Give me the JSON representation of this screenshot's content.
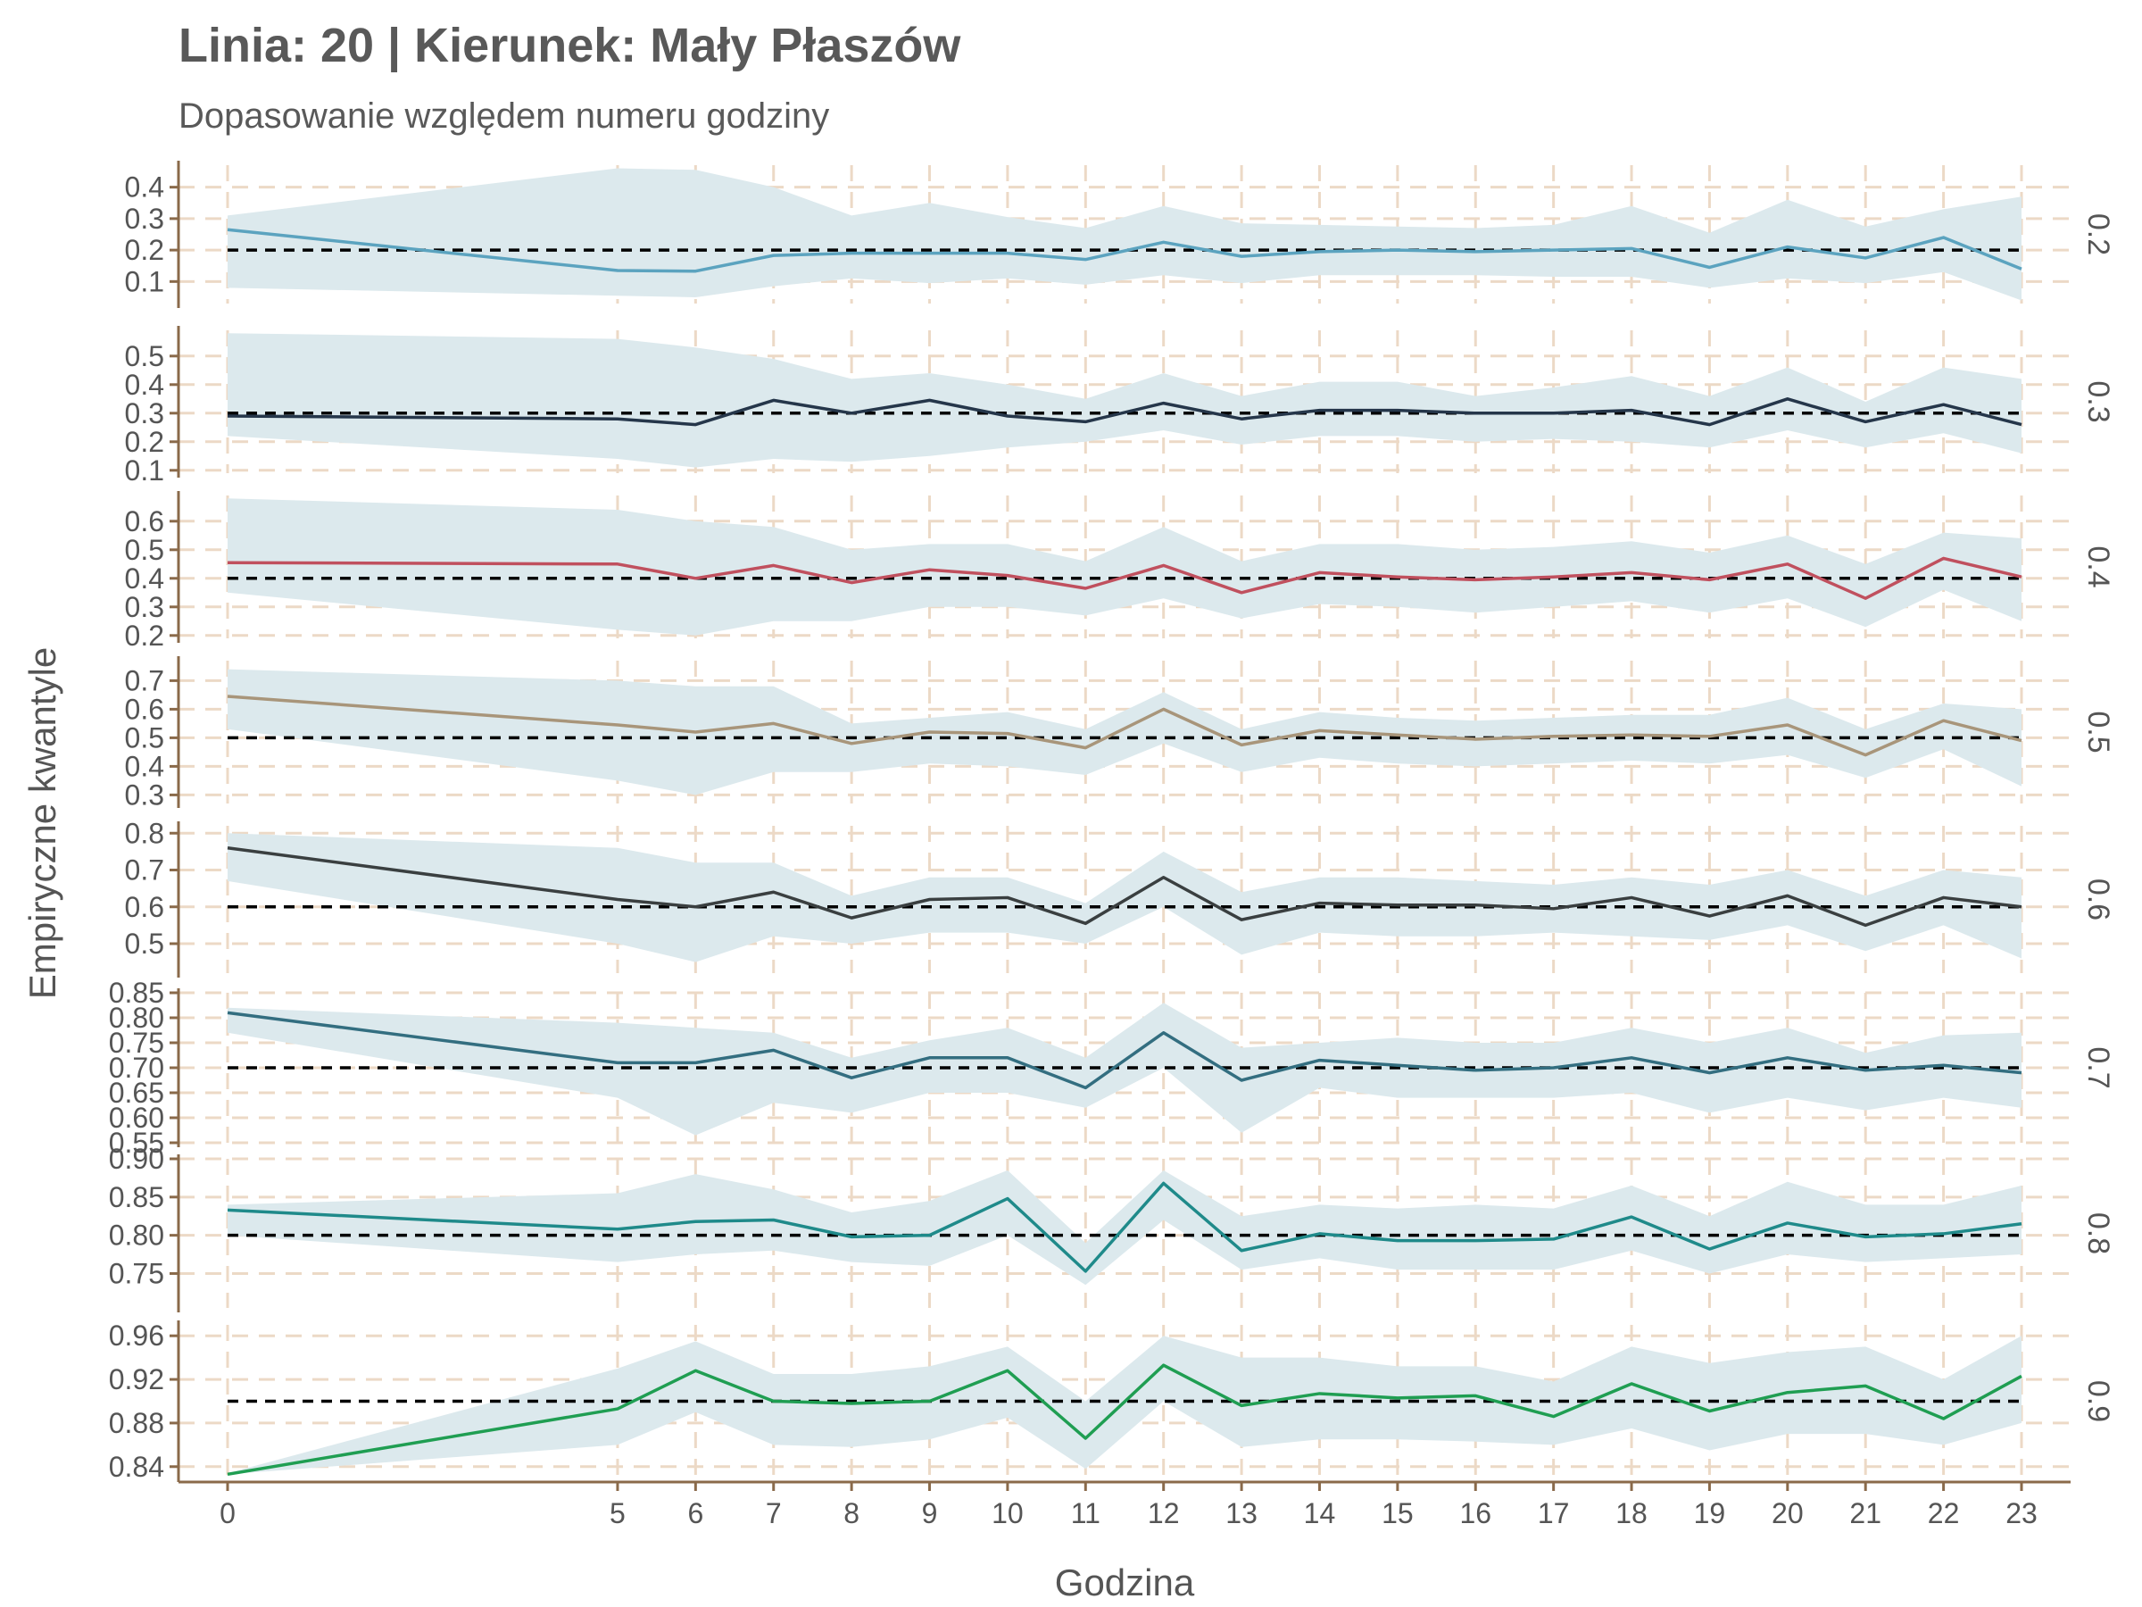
{
  "chart_data": {
    "type": "line",
    "title": "Linia: 20 | Kierunek: Mały Płaszów",
    "subtitle": "Dopasowanie względem numeru godziny",
    "xlabel": "Godzina",
    "ylabel": "Empiryczne kwantyle",
    "x": [
      0,
      5,
      6,
      7,
      8,
      9,
      10,
      11,
      12,
      13,
      14,
      15,
      16,
      17,
      18,
      19,
      20,
      21,
      22,
      23
    ],
    "x_ticks": [
      "0",
      "5",
      "6",
      "7",
      "8",
      "9",
      "10",
      "11",
      "12",
      "13",
      "14",
      "15",
      "16",
      "17",
      "18",
      "19",
      "20",
      "21",
      "22",
      "23"
    ],
    "grid": true,
    "band_color": "#dce9ed",
    "reference_line_style": "black dashed",
    "panels": [
      {
        "label": "0.2",
        "reference": 0.2,
        "color": "#5ba3bf",
        "ylim": [
          0.03,
          0.47
        ],
        "yticks": [
          "0.1",
          "0.2",
          "0.3",
          "0.4"
        ],
        "ytick_values": [
          0.1,
          0.2,
          0.3,
          0.4
        ],
        "values": [
          0.265,
          0.135,
          0.133,
          0.183,
          0.19,
          0.19,
          0.19,
          0.17,
          0.225,
          0.18,
          0.195,
          0.2,
          0.195,
          0.2,
          0.205,
          0.145,
          0.21,
          0.175,
          0.24,
          0.14
        ],
        "lower": [
          0.08,
          0.055,
          0.05,
          0.085,
          0.11,
          0.095,
          0.11,
          0.09,
          0.12,
          0.095,
          0.12,
          0.12,
          0.12,
          0.115,
          0.115,
          0.08,
          0.11,
          0.095,
          0.13,
          0.04
        ],
        "upper": [
          0.31,
          0.46,
          0.455,
          0.4,
          0.31,
          0.35,
          0.305,
          0.27,
          0.34,
          0.285,
          0.28,
          0.275,
          0.27,
          0.28,
          0.34,
          0.255,
          0.36,
          0.275,
          0.33,
          0.37
        ]
      },
      {
        "label": "0.3",
        "reference": 0.3,
        "color": "#25364a",
        "ylim": [
          0.09,
          0.59
        ],
        "yticks": [
          "0.1",
          "0.2",
          "0.3",
          "0.4",
          "0.5"
        ],
        "ytick_values": [
          0.1,
          0.2,
          0.3,
          0.4,
          0.5
        ],
        "values": [
          0.29,
          0.28,
          0.26,
          0.345,
          0.3,
          0.345,
          0.29,
          0.27,
          0.335,
          0.28,
          0.31,
          0.31,
          0.3,
          0.3,
          0.31,
          0.26,
          0.35,
          0.27,
          0.33,
          0.26
        ],
        "lower": [
          0.22,
          0.14,
          0.11,
          0.14,
          0.13,
          0.15,
          0.18,
          0.2,
          0.24,
          0.19,
          0.22,
          0.22,
          0.2,
          0.21,
          0.2,
          0.18,
          0.24,
          0.18,
          0.23,
          0.16
        ],
        "upper": [
          0.58,
          0.56,
          0.53,
          0.49,
          0.42,
          0.44,
          0.4,
          0.35,
          0.44,
          0.36,
          0.41,
          0.41,
          0.36,
          0.39,
          0.43,
          0.36,
          0.46,
          0.34,
          0.46,
          0.42
        ]
      },
      {
        "label": "0.4",
        "reference": 0.4,
        "color": "#c0505e",
        "ylim": [
          0.19,
          0.69
        ],
        "yticks": [
          "0.2",
          "0.3",
          "0.4",
          "0.5",
          "0.6"
        ],
        "ytick_values": [
          0.2,
          0.3,
          0.4,
          0.5,
          0.6
        ],
        "values": [
          0.455,
          0.45,
          0.4,
          0.445,
          0.385,
          0.43,
          0.41,
          0.365,
          0.445,
          0.35,
          0.42,
          0.405,
          0.395,
          0.405,
          0.42,
          0.395,
          0.45,
          0.33,
          0.47,
          0.405
        ],
        "lower": [
          0.35,
          0.22,
          0.2,
          0.25,
          0.25,
          0.3,
          0.3,
          0.27,
          0.33,
          0.26,
          0.31,
          0.3,
          0.28,
          0.3,
          0.32,
          0.28,
          0.33,
          0.23,
          0.36,
          0.25
        ],
        "upper": [
          0.68,
          0.64,
          0.6,
          0.58,
          0.5,
          0.52,
          0.52,
          0.46,
          0.58,
          0.46,
          0.52,
          0.52,
          0.5,
          0.51,
          0.53,
          0.49,
          0.55,
          0.45,
          0.56,
          0.54
        ]
      },
      {
        "label": "0.5",
        "reference": 0.5,
        "color": "#a8957a",
        "ylim": [
          0.27,
          0.77
        ],
        "yticks": [
          "0.3",
          "0.4",
          "0.5",
          "0.6",
          "0.7"
        ],
        "ytick_values": [
          0.3,
          0.4,
          0.5,
          0.6,
          0.7
        ],
        "values": [
          0.645,
          0.545,
          0.52,
          0.55,
          0.48,
          0.52,
          0.515,
          0.465,
          0.6,
          0.475,
          0.525,
          0.51,
          0.495,
          0.505,
          0.51,
          0.505,
          0.545,
          0.44,
          0.56,
          0.49
        ],
        "lower": [
          0.53,
          0.35,
          0.3,
          0.38,
          0.38,
          0.41,
          0.4,
          0.37,
          0.48,
          0.38,
          0.43,
          0.41,
          0.4,
          0.41,
          0.42,
          0.41,
          0.44,
          0.36,
          0.46,
          0.33
        ],
        "upper": [
          0.74,
          0.7,
          0.68,
          0.68,
          0.55,
          0.57,
          0.59,
          0.53,
          0.66,
          0.53,
          0.59,
          0.57,
          0.56,
          0.57,
          0.58,
          0.58,
          0.64,
          0.53,
          0.62,
          0.6
        ]
      },
      {
        "label": "0.6",
        "reference": 0.6,
        "color": "#3a3f40",
        "ylim": [
          0.42,
          0.82
        ],
        "yticks": [
          "0.5",
          "0.6",
          "0.7",
          "0.8"
        ],
        "ytick_values": [
          0.5,
          0.6,
          0.7,
          0.8
        ],
        "values": [
          0.76,
          0.62,
          0.6,
          0.64,
          0.57,
          0.62,
          0.625,
          0.555,
          0.68,
          0.565,
          0.61,
          0.605,
          0.605,
          0.595,
          0.625,
          0.575,
          0.63,
          0.55,
          0.625,
          0.6
        ],
        "lower": [
          0.67,
          0.5,
          0.45,
          0.52,
          0.5,
          0.53,
          0.53,
          0.5,
          0.6,
          0.47,
          0.53,
          0.52,
          0.52,
          0.53,
          0.52,
          0.51,
          0.55,
          0.48,
          0.55,
          0.46
        ],
        "upper": [
          0.8,
          0.76,
          0.72,
          0.72,
          0.63,
          0.68,
          0.68,
          0.61,
          0.75,
          0.64,
          0.68,
          0.68,
          0.67,
          0.66,
          0.68,
          0.66,
          0.7,
          0.63,
          0.7,
          0.68
        ]
      },
      {
        "label": "0.7",
        "reference": 0.7,
        "color": "#336e80",
        "ylim": [
          0.55,
          0.85
        ],
        "yticks": [
          "0.55",
          "0.60",
          "0.65",
          "0.70",
          "0.75",
          "0.80",
          "0.85"
        ],
        "ytick_values": [
          0.55,
          0.6,
          0.65,
          0.7,
          0.75,
          0.8,
          0.85
        ],
        "values": [
          0.81,
          0.71,
          0.71,
          0.735,
          0.68,
          0.72,
          0.72,
          0.66,
          0.77,
          0.675,
          0.715,
          0.705,
          0.695,
          0.7,
          0.72,
          0.69,
          0.72,
          0.695,
          0.705,
          0.69
        ],
        "lower": [
          0.77,
          0.64,
          0.565,
          0.63,
          0.61,
          0.65,
          0.65,
          0.62,
          0.7,
          0.57,
          0.66,
          0.64,
          0.64,
          0.64,
          0.65,
          0.61,
          0.64,
          0.615,
          0.64,
          0.62
        ],
        "upper": [
          0.82,
          0.79,
          0.78,
          0.77,
          0.72,
          0.755,
          0.78,
          0.72,
          0.83,
          0.74,
          0.75,
          0.76,
          0.75,
          0.75,
          0.78,
          0.75,
          0.78,
          0.73,
          0.765,
          0.77
        ]
      },
      {
        "label": "0.8",
        "reference": 0.8,
        "color": "#1f8a8a",
        "ylim": [
          0.705,
          0.9
        ],
        "yticks": [
          "0.75",
          "0.80",
          "0.85",
          "0.90"
        ],
        "ytick_values": [
          0.75,
          0.8,
          0.85,
          0.9
        ],
        "values": [
          0.833,
          0.808,
          0.818,
          0.82,
          0.798,
          0.8,
          0.848,
          0.753,
          0.868,
          0.78,
          0.802,
          0.793,
          0.793,
          0.795,
          0.824,
          0.782,
          0.816,
          0.798,
          0.802,
          0.815
        ],
        "lower": [
          0.8,
          0.765,
          0.775,
          0.78,
          0.765,
          0.76,
          0.8,
          0.735,
          0.82,
          0.755,
          0.77,
          0.755,
          0.755,
          0.755,
          0.78,
          0.75,
          0.775,
          0.765,
          0.77,
          0.775
        ],
        "upper": [
          0.84,
          0.855,
          0.88,
          0.86,
          0.83,
          0.845,
          0.885,
          0.79,
          0.885,
          0.825,
          0.84,
          0.835,
          0.84,
          0.835,
          0.865,
          0.825,
          0.87,
          0.84,
          0.84,
          0.865
        ]
      },
      {
        "label": "0.9",
        "reference": 0.9,
        "color": "#1f9e52",
        "ylim": [
          0.83,
          0.97
        ],
        "yticks": [
          "0.84",
          "0.88",
          "0.92",
          "0.96"
        ],
        "ytick_values": [
          0.84,
          0.88,
          0.92,
          0.96
        ],
        "values": [
          0.833,
          0.893,
          0.928,
          0.9,
          0.898,
          0.9,
          0.928,
          0.866,
          0.933,
          0.896,
          0.907,
          0.903,
          0.905,
          0.886,
          0.916,
          0.891,
          0.908,
          0.914,
          0.884,
          0.923
        ],
        "lower": [
          0.833,
          0.86,
          0.89,
          0.86,
          0.858,
          0.865,
          0.885,
          0.838,
          0.9,
          0.858,
          0.865,
          0.865,
          0.863,
          0.86,
          0.875,
          0.855,
          0.87,
          0.87,
          0.86,
          0.88
        ],
        "upper": [
          0.834,
          0.93,
          0.955,
          0.925,
          0.925,
          0.932,
          0.95,
          0.9,
          0.96,
          0.94,
          0.94,
          0.932,
          0.932,
          0.918,
          0.95,
          0.935,
          0.945,
          0.95,
          0.92,
          0.96
        ]
      }
    ]
  }
}
